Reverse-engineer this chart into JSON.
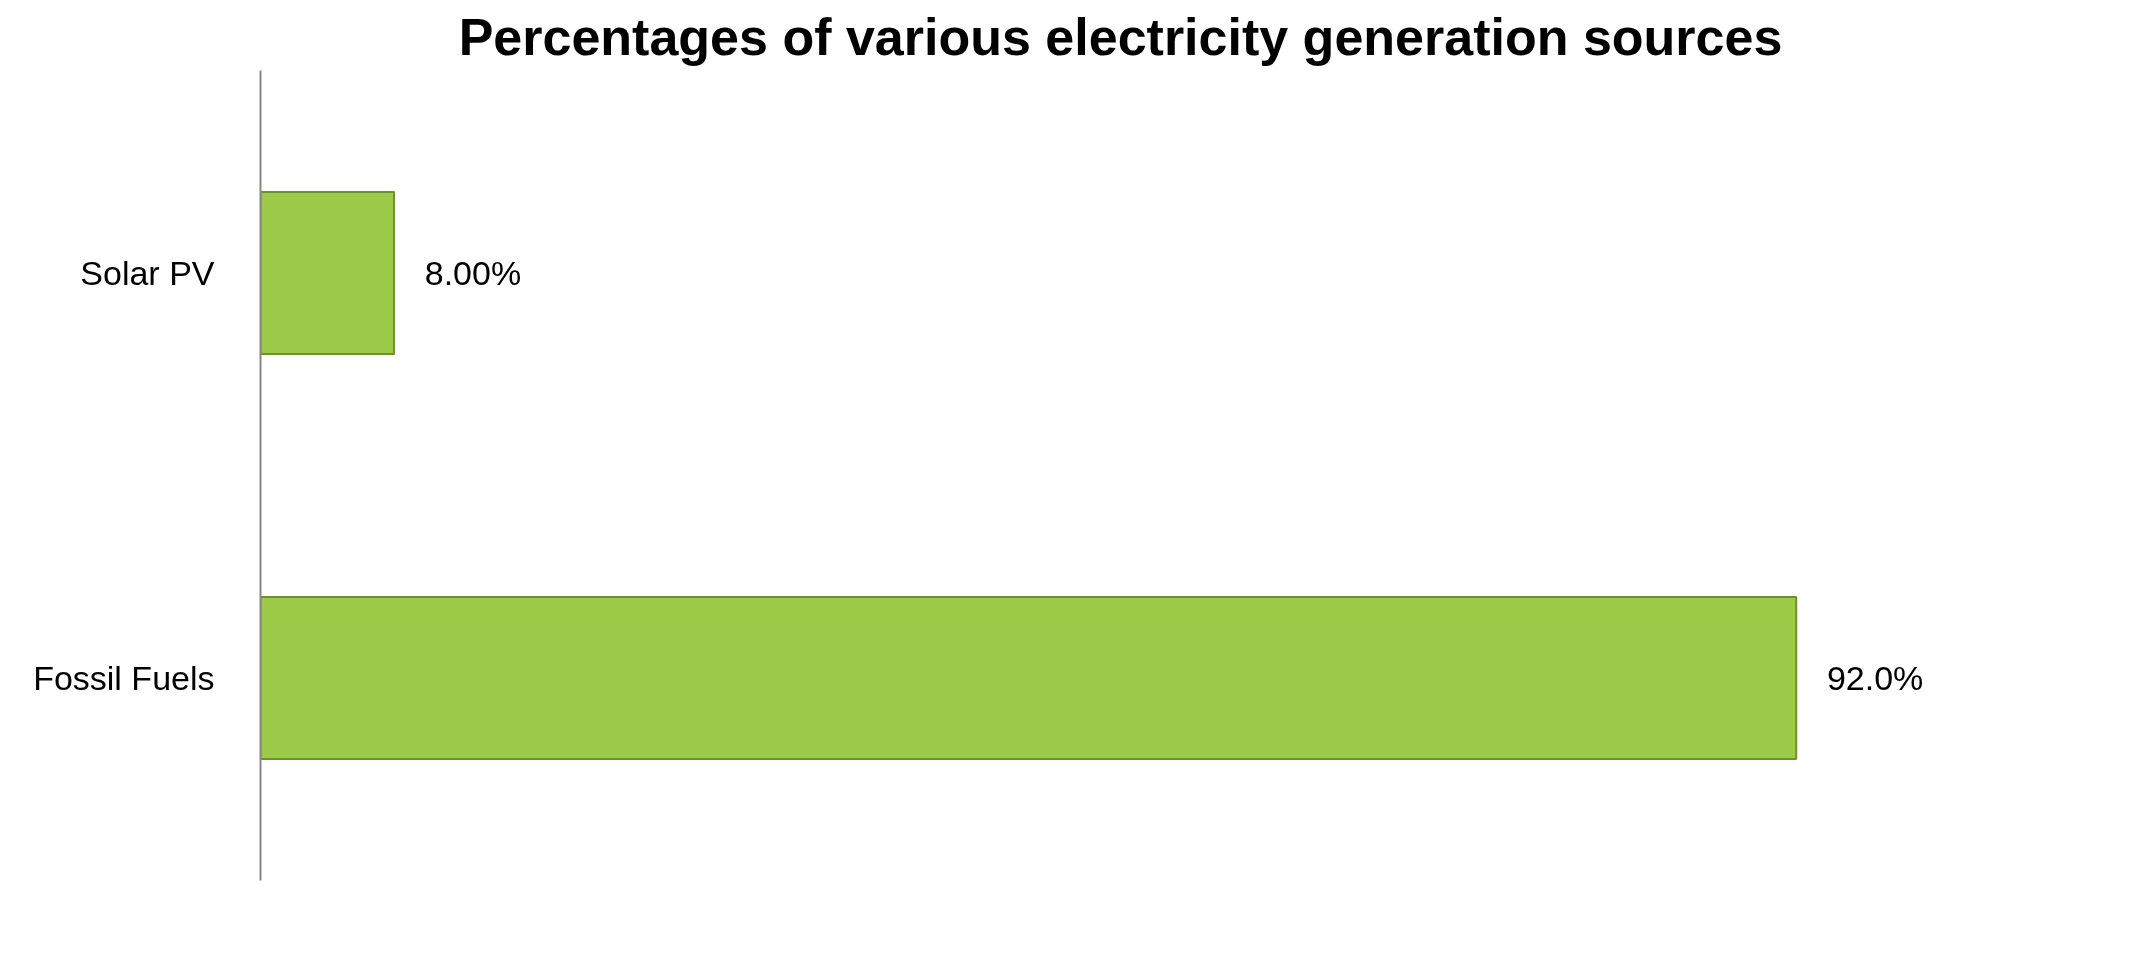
{
  "chart_data": {
    "type": "bar",
    "orientation": "horizontal",
    "title": "Percentages of various electricity generation sources",
    "categories": [
      "Solar PV",
      "Fossil Fuels"
    ],
    "values": [
      8,
      92
    ],
    "value_labels": [
      "8.00%",
      "92.0%"
    ],
    "color": "#9bcb48",
    "grid": false,
    "tick_labels": "y"
  }
}
